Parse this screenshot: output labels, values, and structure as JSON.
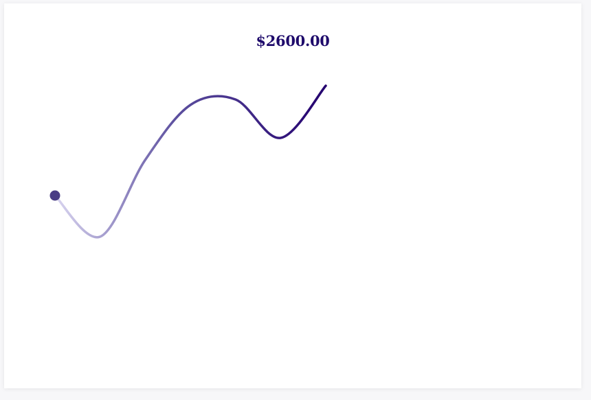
{
  "chart": {
    "value_label": "$2600.00"
  },
  "colors": {
    "line_start": "#d9d5f0",
    "line_mid": "#5b4e9e",
    "line_end": "#23006e",
    "dot": "#4a3d85",
    "label": "#1e0a6b"
  },
  "chart_data": {
    "type": "line",
    "title": "",
    "xlabel": "",
    "ylabel": "",
    "grid": false,
    "legend": "none",
    "series": [
      {
        "values": [
          2200,
          2050,
          2330,
          2530,
          2550,
          2410,
          2600
        ]
      }
    ],
    "ylim": [
      1500,
      2800
    ],
    "highlight": {
      "index": 0,
      "marker": "dot"
    }
  }
}
